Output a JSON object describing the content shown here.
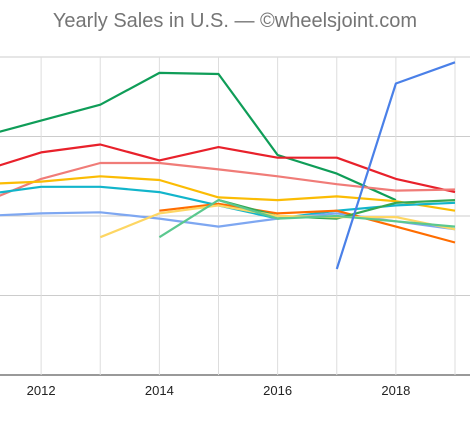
{
  "chart_data": {
    "type": "line",
    "title": "Yearly Sales in U.S. — ©wheelsjoint.com",
    "xlabel": "",
    "ylabel": "",
    "x": [
      2011,
      2012,
      2013,
      2014,
      2015,
      2016,
      2017,
      2018,
      2019
    ],
    "x_ticks": [
      "2012",
      "2014",
      "2016",
      "2018"
    ],
    "xlim": [
      2011,
      2019
    ],
    "ylim": [
      0,
      6
    ],
    "grid": true,
    "legend": "none",
    "series": [
      {
        "color": "#0f9d58",
        "values": [
          4.5,
          4.8,
          5.1,
          5.7,
          5.68,
          4.15,
          3.8,
          3.3,
          null
        ]
      },
      {
        "color": "#e8212b",
        "values": [
          3.85,
          4.2,
          4.35,
          4.05,
          4.3,
          4.1,
          4.1,
          3.7,
          3.45
        ]
      },
      {
        "color": "#f07c78",
        "values": [
          3.25,
          3.7,
          4.0,
          4.0,
          3.88,
          3.75,
          3.6,
          3.48,
          3.5
        ]
      },
      {
        "color": "#fbbc04",
        "values": [
          3.6,
          3.65,
          3.75,
          3.68,
          3.35,
          3.3,
          3.37,
          3.28,
          3.1
        ]
      },
      {
        "color": "#12b5cb",
        "values": [
          3.4,
          3.55,
          3.55,
          3.45,
          3.2,
          2.95,
          3.1,
          3.2,
          3.25
        ]
      },
      {
        "color": "#7ea7f1",
        "values": [
          3.0,
          3.05,
          3.07,
          2.95,
          2.8,
          2.95,
          3.05,
          2.9,
          2.75
        ]
      },
      {
        "color": "#ff6d00",
        "values": [
          null,
          null,
          null,
          3.1,
          3.23,
          3.05,
          3.1,
          2.8,
          2.5
        ]
      },
      {
        "color": "#34a853",
        "values": [
          null,
          null,
          null,
          null,
          3.3,
          3.0,
          2.95,
          3.25,
          3.3
        ]
      },
      {
        "color": "#fdd663",
        "values": [
          null,
          null,
          2.6,
          3.05,
          3.2,
          3.0,
          2.98,
          2.98,
          2.75
        ]
      },
      {
        "color": "#5bc88f",
        "values": [
          null,
          null,
          null,
          2.6,
          3.3,
          2.95,
          3.0,
          2.9,
          2.8
        ]
      },
      {
        "color": "#4a80e8",
        "values": [
          null,
          null,
          null,
          null,
          null,
          null,
          2.0,
          5.5,
          5.9
        ]
      }
    ]
  }
}
